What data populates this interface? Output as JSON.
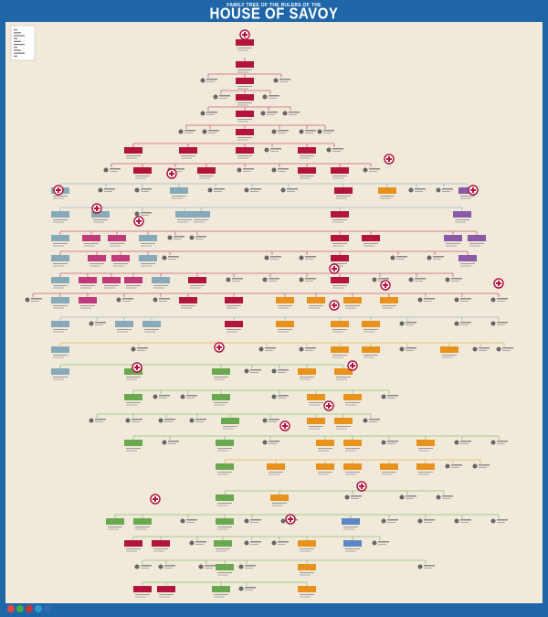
{
  "header": {
    "subtitle": "FAMILY TREE OF THE RULERS OF THE",
    "title": "HOUSE OF SAVOY"
  }
}
